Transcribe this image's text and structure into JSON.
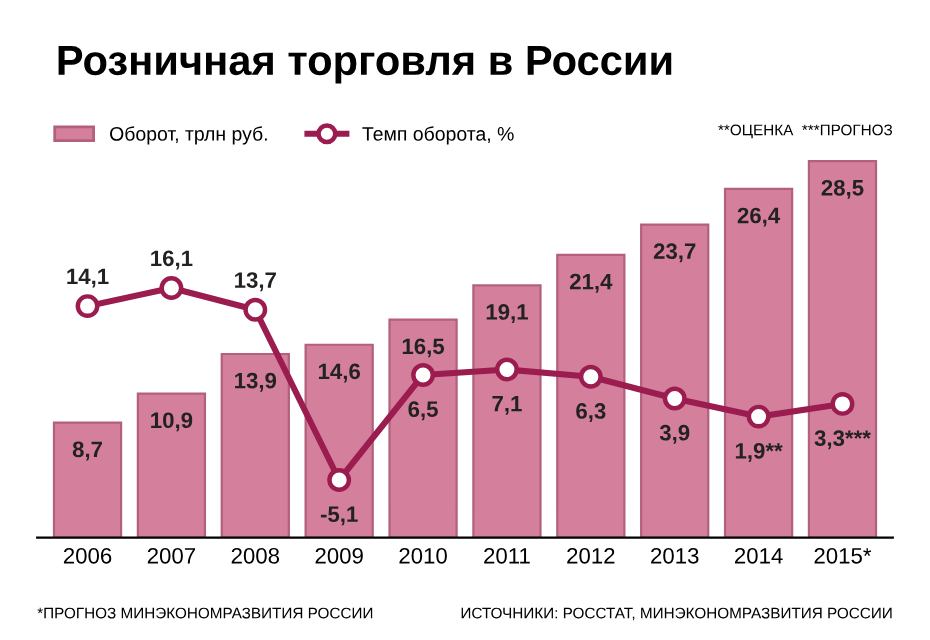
{
  "chart_data": {
    "type": "bar",
    "title": "Розничная торговля в России",
    "categories": [
      "2006",
      "2007",
      "2008",
      "2009",
      "2010",
      "2011",
      "2012",
      "2013",
      "2014",
      "2015*"
    ],
    "series": [
      {
        "name": "Оборот, трлн руб.",
        "color": "#d47f9c",
        "values": [
          8.7,
          10.9,
          13.9,
          14.6,
          16.5,
          19.1,
          21.4,
          23.7,
          26.4,
          28.5
        ],
        "value_labels": [
          "8,7",
          "10,9",
          "13,9",
          "14,6",
          "16,5",
          "19,1",
          "21,4",
          "23,7",
          "26,4",
          "28,5"
        ]
      },
      {
        "name": "Темп оборота, %",
        "type": "line",
        "axis": "y2",
        "color": "#9b1c4f",
        "marker": "circle",
        "values": [
          14.1,
          16.1,
          13.7,
          -5.1,
          6.5,
          7.1,
          6.3,
          3.9,
          1.9,
          3.3
        ],
        "value_labels": [
          "14,1",
          "16,1",
          "13,7",
          "-5,1",
          "6,5",
          "7,1",
          "6,3",
          "3,9",
          "1,9**",
          "3,3***"
        ]
      }
    ],
    "tick_labels": "x",
    "data_labels": true,
    "legend": "top left",
    "annotations": [
      "**ОЦЕНКА  ***ПРОГНОЗ",
      "*ПРОГНОЗ МИНЭКОНОМРАЗВИТИЯ РОССИИ",
      "ИСТОЧНИКИ: РОССТАТ, МИНЭКОНОМРАЗВИТИЯ РОССИИ"
    ]
  }
}
